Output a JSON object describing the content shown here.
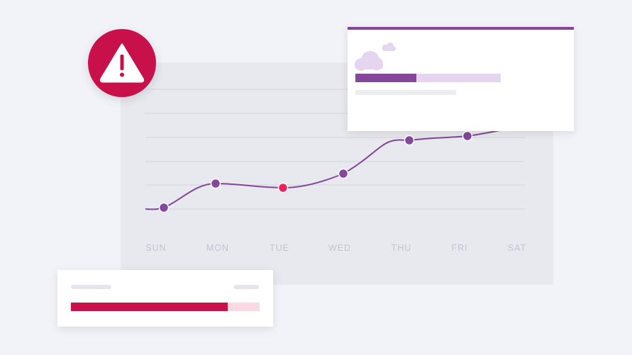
{
  "chart": {
    "days": [
      "SUN",
      "MON",
      "TUE",
      "WED",
      "THU",
      "FRI",
      "SAT"
    ],
    "line_color": "#84479a",
    "highlight_color": "#e8245a"
  },
  "alert": {
    "icon": "warning-icon",
    "color": "#c8104a"
  },
  "popup": {
    "icon": "cloud-icon",
    "accent": "#84479a",
    "progress": 0.42
  },
  "card": {
    "accent": "#c8104a",
    "progress": 0.83
  }
}
